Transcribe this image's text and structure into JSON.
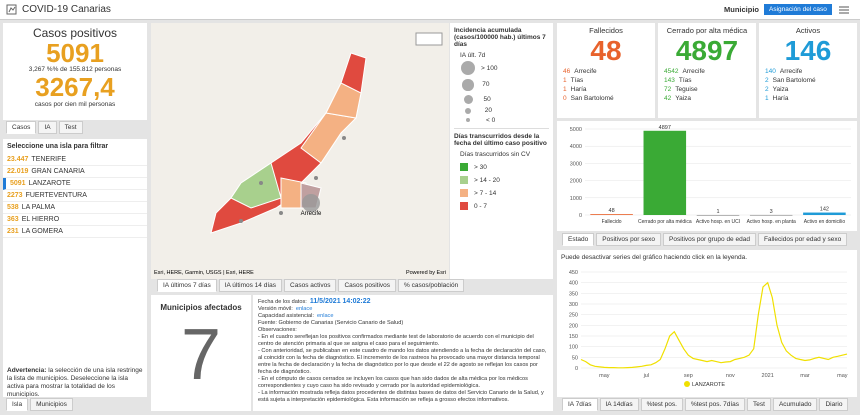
{
  "header": {
    "title": "COVID-19 Canarias",
    "filter_label": "Municipio",
    "button": "Asignación del caso"
  },
  "casos": {
    "title": "Casos positivos",
    "total": "5091",
    "percent_text": "3,267 %% de 155.812 personas",
    "rate": "3267,4",
    "rate_label": "casos por cien mil personas",
    "tabs": [
      "Casos",
      "IA",
      "Test"
    ]
  },
  "islands": {
    "title": "Seleccione una isla para filtrar",
    "selected": 2,
    "items": [
      {
        "value": "23.447",
        "name": "TENERIFE"
      },
      {
        "value": "22.019",
        "name": "GRAN CANARIA"
      },
      {
        "value": "5091",
        "name": "LANZAROTE"
      },
      {
        "value": "2273",
        "name": "FUERTEVENTURA"
      },
      {
        "value": "538",
        "name": "LA PALMA"
      },
      {
        "value": "363",
        "name": "EL HIERRO"
      },
      {
        "value": "231",
        "name": "LA GOMERA"
      }
    ],
    "warning_title": "Advertencia:",
    "warning": "la selección de una isla restringe la lista de municipios. Deseleccione la isla activa para mostrar la totalidad de los municipios.",
    "tabs": [
      "Isla",
      "Municipios"
    ]
  },
  "map": {
    "place": "Arrecife",
    "attribution": "Esri, HERE, Garmin, USGS | Esri, HERE",
    "powered": "Powered by Esri",
    "tabs": [
      "IA últimos 7 días",
      "IA últimos 14 días",
      "Casos activos",
      "Casos positivos",
      "% casos/población"
    ]
  },
  "legend": {
    "ia_title": "Incidencia acumulada (casos/100000 hab.) últimos 7 días",
    "ia_sub": "IA últ. 7d",
    "ia_items": [
      "> 100",
      "70",
      "50",
      "20",
      "< 0"
    ],
    "days_title": "Días transcurridos desde la fecha del último caso positivo",
    "days_sub": "Días trascurridos sin CV",
    "days_items": [
      {
        "label": "> 30",
        "color": "#3aaa35"
      },
      {
        "label": "> 14 - 20",
        "color": "#a8d08d"
      },
      {
        "label": "> 7 - 14",
        "color": "#f4b183"
      },
      {
        "label": "0 - 7",
        "color": "#e04a3f"
      }
    ]
  },
  "municipios": {
    "title": "Municipios afectados",
    "value": "7"
  },
  "notes": {
    "fields": [
      {
        "label": "Fecha de los datos:",
        "value": "11/5/2021 14:02:22"
      },
      {
        "label": "Versión móvil:",
        "value": "enlace"
      },
      {
        "label": "Capacidad asistencial:",
        "value": "enlace"
      }
    ],
    "source": "Fuente: Gobierno de Canarias (Servicio Canario de Salud)",
    "obs_title": "Observaciones:",
    "observations": [
      "- En el cuadro sereflejan los positivos confirmados mediante test de laboratorio de acuerdo con el municipio del centro de atención primaria al que se asigna el caso para el seguimiento.",
      "- Con anterioridad, se publicaban en este cuadro de mando los datos atendiendo a la fecha de declaración del caso, al coincidir con la fecha de diagnóstico. El incremento de los rastreos ha provocado una mayor distancia temporal entre la fecha de declaración y la fecha de diagnóstico por lo que desde el 22 de agosto se reflejan los casos por fecha de diagnóstico.",
      "- En el cómputo de casos cerrados se incluyen los casos que han sido dados de alta médica por los médicos correspondientes y cuyo caso ha sido revisado y cerrado por la autoridad epidemiológica.",
      "- La información mostrada refleja datos procedentes de distintas bases de datos del Servicio Canario de la Salud, y está sujeta a interpretación epidemiológica. Esta información se refleja a grosso efectos informativos."
    ]
  },
  "indicators": [
    {
      "title": "Fallecidos",
      "value": "48",
      "color": "#e8622c",
      "items": [
        {
          "value": "46",
          "name": "Arrecife"
        },
        {
          "value": "1",
          "name": "Tías"
        },
        {
          "value": "1",
          "name": "Haría"
        },
        {
          "value": "0",
          "name": "San Bartolomé"
        }
      ]
    },
    {
      "title": "Cerrado por alta médica",
      "value": "4897",
      "color": "#3aaa35",
      "items": [
        {
          "value": "4542",
          "name": "Arrecife"
        },
        {
          "value": "143",
          "name": "Tías"
        },
        {
          "value": "72",
          "name": "Teguise"
        },
        {
          "value": "42",
          "name": "Yaiza"
        }
      ]
    },
    {
      "title": "Activos",
      "value": "146",
      "color": "#1f9bd7",
      "items": [
        {
          "value": "140",
          "name": "Arrecife"
        },
        {
          "value": "2",
          "name": "San Bartolomé"
        },
        {
          "value": "2",
          "name": "Yaiza"
        },
        {
          "value": "1",
          "name": "Haría"
        }
      ]
    }
  ],
  "bar_tabs": [
    "Estado",
    "Positivos por sexo",
    "Positivos por grupo de edad",
    "Fallecidos por edad y sexo"
  ],
  "line_tabs": [
    "IA 7días",
    "IA 14días",
    "%test pos.",
    "%test pos. 7días",
    "Test",
    "Acumulado",
    "Diario"
  ],
  "chart_data": [
    {
      "type": "bar",
      "categories": [
        "Fallecido",
        "Cerrado por alta médica",
        "Activo hosp. en UCI",
        "Activo hosp. en planta",
        "Activo en domicilio"
      ],
      "values": [
        48,
        4897,
        1,
        3,
        142
      ],
      "colors": [
        "#e8622c",
        "#3aaa35",
        "#7f7f7f",
        "#7f7f7f",
        "#1f9bd7"
      ],
      "ylim": [
        0,
        5000
      ],
      "yticks": [
        0,
        1000,
        2000,
        3000,
        4000,
        5000
      ],
      "grid": true,
      "show_values": true
    },
    {
      "type": "line",
      "subtitle": "Puede desactivar series del gráfico haciendo click en la leyenda.",
      "categories": [
        null,
        null,
        null,
        null,
        null,
        "may",
        null,
        null,
        null,
        null,
        null,
        null,
        null,
        null,
        "jul",
        null,
        null,
        null,
        null,
        null,
        null,
        null,
        null,
        "sep",
        null,
        null,
        null,
        null,
        null,
        null,
        null,
        null,
        "nov",
        null,
        null,
        null,
        null,
        null,
        null,
        null,
        "2021",
        null,
        null,
        null,
        null,
        null,
        null,
        null,
        "mar",
        null,
        null,
        null,
        null,
        null,
        null,
        null,
        "may",
        null
      ],
      "series": [
        {
          "name": "LANZAROTE",
          "color": "#f0e000",
          "values": [
            40,
            30,
            15,
            8,
            5,
            3,
            2,
            2,
            1,
            1,
            2,
            3,
            5,
            8,
            12,
            15,
            25,
            40,
            90,
            150,
            170,
            130,
            90,
            60,
            45,
            40,
            35,
            30,
            35,
            30,
            25,
            28,
            30,
            40,
            45,
            50,
            60,
            90,
            250,
            380,
            400,
            330,
            200,
            120,
            80,
            60,
            45,
            40,
            35,
            38,
            45,
            50,
            45,
            40,
            50,
            55,
            60,
            65
          ]
        }
      ],
      "ylim": [
        0,
        450
      ],
      "yticks": [
        0,
        50,
        100,
        150,
        200,
        250,
        300,
        350,
        400,
        450
      ],
      "grid": true
    }
  ]
}
